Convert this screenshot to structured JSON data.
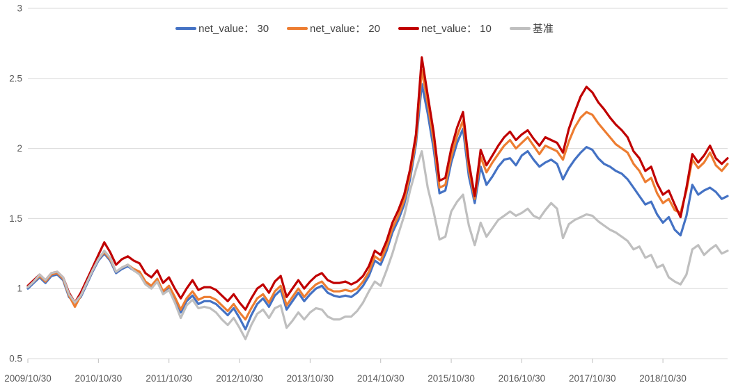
{
  "chart_data": {
    "type": "line",
    "title": "",
    "legend_position": "top-center",
    "grid": "horizontal",
    "background": "#FFFFFF",
    "gridline_color": "#D9D9D9",
    "tick_color": "#BFBFBF",
    "axis_text_color": "#595959",
    "legend_text_color": "#404040",
    "x_axis": {
      "tick_labels": [
        "2009/10/30",
        "2010/10/30",
        "2011/10/30",
        "2012/10/30",
        "2013/10/30",
        "2014/10/30",
        "2015/10/30",
        "2016/10/30",
        "2017/10/30",
        "2018/10/30"
      ],
      "points_per_tick": 12,
      "n_points": 120
    },
    "y_axis": {
      "min": 0.5,
      "max": 3,
      "ticks": [
        3,
        2.5,
        2,
        1.5,
        1,
        0.5
      ],
      "tick_labels": [
        "3",
        "2.5",
        "2",
        "1.5",
        "1",
        "0.5"
      ]
    },
    "series": [
      {
        "id": "net-value-30",
        "name": "net_value： 30",
        "color": "#4472C4",
        "values": [
          1.0,
          1.04,
          1.08,
          1.04,
          1.09,
          1.1,
          1.06,
          0.94,
          0.9,
          0.94,
          1.03,
          1.12,
          1.2,
          1.25,
          1.2,
          1.11,
          1.14,
          1.16,
          1.13,
          1.11,
          1.04,
          1.01,
          1.06,
          0.97,
          1.01,
          0.92,
          0.83,
          0.91,
          0.95,
          0.89,
          0.91,
          0.91,
          0.89,
          0.85,
          0.81,
          0.86,
          0.79,
          0.71,
          0.81,
          0.89,
          0.93,
          0.87,
          0.95,
          0.99,
          0.85,
          0.91,
          0.97,
          0.91,
          0.96,
          1.0,
          1.02,
          0.97,
          0.95,
          0.94,
          0.95,
          0.94,
          0.97,
          1.02,
          1.09,
          1.2,
          1.17,
          1.27,
          1.4,
          1.49,
          1.6,
          1.78,
          2.03,
          2.46,
          2.25,
          2.0,
          1.68,
          1.7,
          1.9,
          2.04,
          2.14,
          1.8,
          1.61,
          1.87,
          1.74,
          1.8,
          1.87,
          1.92,
          1.93,
          1.88,
          1.95,
          1.98,
          1.92,
          1.87,
          1.9,
          1.92,
          1.89,
          1.78,
          1.86,
          1.92,
          1.97,
          2.01,
          1.99,
          1.93,
          1.89,
          1.87,
          1.84,
          1.82,
          1.78,
          1.72,
          1.66,
          1.6,
          1.62,
          1.53,
          1.47,
          1.51,
          1.42,
          1.38,
          1.52,
          1.74,
          1.67,
          1.7,
          1.72,
          1.69,
          1.64,
          1.66
        ]
      },
      {
        "id": "net-value-20",
        "name": "net_value： 20",
        "color": "#ED7D31",
        "values": [
          1.01,
          1.05,
          1.09,
          1.05,
          1.1,
          1.11,
          1.07,
          0.95,
          0.87,
          0.95,
          1.04,
          1.13,
          1.21,
          1.26,
          1.21,
          1.12,
          1.15,
          1.17,
          1.14,
          1.12,
          1.05,
          1.02,
          1.07,
          0.98,
          1.02,
          0.94,
          0.85,
          0.93,
          0.98,
          0.92,
          0.94,
          0.94,
          0.92,
          0.88,
          0.84,
          0.89,
          0.83,
          0.78,
          0.86,
          0.93,
          0.96,
          0.9,
          0.98,
          1.02,
          0.88,
          0.94,
          1.0,
          0.94,
          0.99,
          1.03,
          1.05,
          1.0,
          0.98,
          0.98,
          0.99,
          0.98,
          1.0,
          1.05,
          1.12,
          1.23,
          1.2,
          1.3,
          1.43,
          1.52,
          1.63,
          1.81,
          2.06,
          2.56,
          2.32,
          2.06,
          1.72,
          1.74,
          1.94,
          2.09,
          2.2,
          1.85,
          1.64,
          1.94,
          1.83,
          1.9,
          1.96,
          2.02,
          2.06,
          2.0,
          2.04,
          2.08,
          2.02,
          1.96,
          2.02,
          2.0,
          1.98,
          1.92,
          2.05,
          2.15,
          2.22,
          2.26,
          2.24,
          2.18,
          2.13,
          2.08,
          2.03,
          2.0,
          1.97,
          1.89,
          1.84,
          1.76,
          1.79,
          1.68,
          1.61,
          1.64,
          1.56,
          1.54,
          1.7,
          1.92,
          1.86,
          1.9,
          1.97,
          1.88,
          1.84,
          1.89
        ]
      },
      {
        "id": "net-value-10",
        "name": "net_value： 10",
        "color": "#C00000",
        "values": [
          1.02,
          1.06,
          1.1,
          1.06,
          1.11,
          1.12,
          1.08,
          0.97,
          0.9,
          0.97,
          1.06,
          1.15,
          1.24,
          1.33,
          1.26,
          1.17,
          1.21,
          1.23,
          1.2,
          1.18,
          1.11,
          1.08,
          1.13,
          1.04,
          1.08,
          1.0,
          0.93,
          1.0,
          1.06,
          0.99,
          1.01,
          1.01,
          0.99,
          0.95,
          0.91,
          0.96,
          0.9,
          0.85,
          0.93,
          1.0,
          1.03,
          0.97,
          1.05,
          1.09,
          0.94,
          1.0,
          1.06,
          1.0,
          1.05,
          1.09,
          1.11,
          1.06,
          1.04,
          1.04,
          1.05,
          1.03,
          1.05,
          1.09,
          1.16,
          1.27,
          1.24,
          1.34,
          1.47,
          1.56,
          1.67,
          1.85,
          2.1,
          2.65,
          2.38,
          2.12,
          1.77,
          1.79,
          2.0,
          2.15,
          2.26,
          1.9,
          1.66,
          1.99,
          1.88,
          1.95,
          2.02,
          2.08,
          2.12,
          2.06,
          2.1,
          2.13,
          2.07,
          2.02,
          2.08,
          2.06,
          2.04,
          1.97,
          2.14,
          2.26,
          2.37,
          2.44,
          2.4,
          2.33,
          2.28,
          2.22,
          2.17,
          2.13,
          2.08,
          1.98,
          1.93,
          1.84,
          1.87,
          1.75,
          1.67,
          1.7,
          1.6,
          1.51,
          1.72,
          1.96,
          1.9,
          1.95,
          2.02,
          1.93,
          1.89,
          1.93
        ]
      },
      {
        "id": "benchmark",
        "name": "基准",
        "color": "#BFBFBF",
        "values": [
          1.01,
          1.05,
          1.1,
          1.06,
          1.11,
          1.12,
          1.08,
          0.96,
          0.9,
          0.95,
          1.04,
          1.13,
          1.21,
          1.27,
          1.22,
          1.12,
          1.15,
          1.17,
          1.13,
          1.1,
          1.03,
          1.0,
          1.05,
          0.96,
          0.99,
          0.9,
          0.79,
          0.88,
          0.92,
          0.86,
          0.87,
          0.86,
          0.83,
          0.78,
          0.74,
          0.79,
          0.72,
          0.64,
          0.74,
          0.82,
          0.85,
          0.79,
          0.86,
          0.88,
          0.72,
          0.77,
          0.83,
          0.78,
          0.83,
          0.86,
          0.85,
          0.8,
          0.78,
          0.78,
          0.8,
          0.8,
          0.84,
          0.9,
          0.98,
          1.05,
          1.02,
          1.13,
          1.25,
          1.39,
          1.52,
          1.7,
          1.85,
          1.98,
          1.72,
          1.55,
          1.35,
          1.37,
          1.55,
          1.62,
          1.67,
          1.45,
          1.31,
          1.47,
          1.37,
          1.43,
          1.49,
          1.52,
          1.55,
          1.52,
          1.54,
          1.57,
          1.52,
          1.5,
          1.56,
          1.61,
          1.57,
          1.36,
          1.46,
          1.49,
          1.51,
          1.53,
          1.52,
          1.48,
          1.45,
          1.42,
          1.4,
          1.37,
          1.34,
          1.28,
          1.3,
          1.22,
          1.24,
          1.15,
          1.17,
          1.08,
          1.05,
          1.03,
          1.1,
          1.28,
          1.31,
          1.24,
          1.28,
          1.31,
          1.25,
          1.27
        ]
      }
    ]
  }
}
